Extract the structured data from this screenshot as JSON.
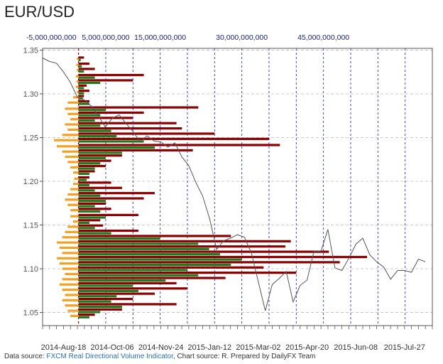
{
  "chart_title": "EUR/USD",
  "footer": {
    "prefix": "Data source: ",
    "link": "FXCM Real Directional Volume Indicator",
    "suffix": ", Chart source: R. Prepared by DailyFX Team"
  },
  "colors": {
    "price_line": "#555555",
    "buy_volume": "#1f7a1f",
    "sell_volume": "#8b0000",
    "net_volume": "#f5a020",
    "grid": "#bbbbbb",
    "volume_gridline": "#3333aa",
    "zero_line": "#8b0000",
    "top_axis_text": "#1a237e"
  },
  "chart_data": {
    "type": "line",
    "title": "EUR/USD",
    "y_axis": {
      "ticks": [
        "1.05",
        "1.10",
        "1.15",
        "1.20",
        "1.25",
        "1.30",
        "1.35"
      ],
      "min": 1.035,
      "max": 1.352
    },
    "x_axis": {
      "ticks": [
        "2014-Aug-18",
        "2014-Oct-06",
        "2014-Nov-24",
        "2015-Jan-12",
        "2015-Mar-02",
        "2015-Apr-20",
        "2015-Jun-08",
        "2015-Jul-27"
      ],
      "start": "2014-Jul-28",
      "end": "2015-Aug-24"
    },
    "volume_axis": {
      "ticks": [
        "-5,000,000,000",
        "5,000,000,000",
        "15,000,000,000",
        "30,000,000,000",
        "45,000,000,000"
      ],
      "min": -6600000000,
      "max": 65000000000,
      "gridlines": [
        0,
        5000000000,
        10000000000,
        15000000000,
        20000000000,
        25000000000,
        30000000000,
        35000000000,
        40000000000,
        45000000000,
        50000000000,
        55000000000,
        60000000000
      ]
    },
    "price_series": [
      [
        "2014-Jul-28",
        1.341
      ],
      [
        "2014-Aug-04",
        1.337
      ],
      [
        "2014-Aug-11",
        1.335
      ],
      [
        "2014-Aug-18",
        1.325
      ],
      [
        "2014-Aug-25",
        1.313
      ],
      [
        "2014-Sep-01",
        1.296
      ],
      [
        "2014-Sep-08",
        1.293
      ],
      [
        "2014-Sep-15",
        1.286
      ],
      [
        "2014-Sep-22",
        1.275
      ],
      [
        "2014-Sep-29",
        1.262
      ],
      [
        "2014-Oct-06",
        1.272
      ],
      [
        "2014-Oct-13",
        1.276
      ],
      [
        "2014-Oct-20",
        1.266
      ],
      [
        "2014-Oct-27",
        1.257
      ],
      [
        "2014-Nov-03",
        1.245
      ],
      [
        "2014-Nov-10",
        1.252
      ],
      [
        "2014-Nov-17",
        1.246
      ],
      [
        "2014-Nov-24",
        1.245
      ],
      [
        "2014-Dec-01",
        1.239
      ],
      [
        "2014-Dec-08",
        1.244
      ],
      [
        "2014-Dec-15",
        1.228
      ],
      [
        "2014-Dec-22",
        1.218
      ],
      [
        "2014-Dec-29",
        1.199
      ],
      [
        "2015-Jan-05",
        1.183
      ],
      [
        "2015-Jan-12",
        1.157
      ],
      [
        "2015-Jan-19",
        1.122
      ],
      [
        "2015-Jan-26",
        1.132
      ],
      [
        "2015-Feb-02",
        1.135
      ],
      [
        "2015-Feb-09",
        1.139
      ],
      [
        "2015-Feb-16",
        1.136
      ],
      [
        "2015-Feb-23",
        1.118
      ],
      [
        "2015-Mar-02",
        1.085
      ],
      [
        "2015-Mar-09",
        1.052
      ],
      [
        "2015-Mar-16",
        1.082
      ],
      [
        "2015-Mar-23",
        1.089
      ],
      [
        "2015-Mar-30",
        1.097
      ],
      [
        "2015-Apr-06",
        1.062
      ],
      [
        "2015-Apr-13",
        1.081
      ],
      [
        "2015-Apr-20",
        1.087
      ],
      [
        "2015-Apr-27",
        1.12
      ],
      [
        "2015-May-04",
        1.12
      ],
      [
        "2015-May-11",
        1.145
      ],
      [
        "2015-May-18",
        1.101
      ],
      [
        "2015-May-25",
        1.098
      ],
      [
        "2015-Jun-01",
        1.112
      ],
      [
        "2015-Jun-08",
        1.128
      ],
      [
        "2015-Jun-15",
        1.135
      ],
      [
        "2015-Jun-22",
        1.116
      ],
      [
        "2015-Jun-29",
        1.108
      ],
      [
        "2015-Jul-06",
        1.102
      ],
      [
        "2015-Jul-13",
        1.088
      ],
      [
        "2015-Jul-20",
        1.098
      ],
      [
        "2015-Jul-27",
        1.098
      ],
      [
        "2015-Aug-03",
        1.096
      ],
      [
        "2015-Aug-10",
        1.111
      ],
      [
        "2015-Aug-17",
        1.108
      ]
    ],
    "volume_profile": [
      [
        1.34,
        0.3,
        1.0,
        0.4
      ],
      [
        1.333,
        0.4,
        2.0,
        0.6
      ],
      [
        1.327,
        0.3,
        3.0,
        1.0
      ],
      [
        1.32,
        0.5,
        12.0,
        3.0
      ],
      [
        1.314,
        0.4,
        10.0,
        4.0
      ],
      [
        1.308,
        0.5,
        1.5,
        1.0
      ],
      [
        1.302,
        0.3,
        2.0,
        1.0
      ],
      [
        1.296,
        1.0,
        1.0,
        0.8
      ],
      [
        1.29,
        2.0,
        2.0,
        2.0
      ],
      [
        1.283,
        2.5,
        22.0,
        5.0
      ],
      [
        1.277,
        2.0,
        12.0,
        4.0
      ],
      [
        1.271,
        1.5,
        10.0,
        3.0
      ],
      [
        1.265,
        2.5,
        18.0,
        4.0
      ],
      [
        1.259,
        2.0,
        19.0,
        6.0
      ],
      [
        1.253,
        3.0,
        25.0,
        7.0
      ],
      [
        1.247,
        4.5,
        35.0,
        12.0
      ],
      [
        1.24,
        4.0,
        37.0,
        14.0
      ],
      [
        1.234,
        3.0,
        21.0,
        8.0
      ],
      [
        1.228,
        2.5,
        8.0,
        5.0
      ],
      [
        1.222,
        2.0,
        6.0,
        4.0
      ],
      [
        1.216,
        1.5,
        5.0,
        3.0
      ],
      [
        1.21,
        1.0,
        3.0,
        2.0
      ],
      [
        1.203,
        0.8,
        2.0,
        1.5
      ],
      [
        1.197,
        1.0,
        6.0,
        2.0
      ],
      [
        1.191,
        1.5,
        8.0,
        3.0
      ],
      [
        1.185,
        2.0,
        14.0,
        4.0
      ],
      [
        1.179,
        2.5,
        12.0,
        5.0
      ],
      [
        1.173,
        2.0,
        5.0,
        3.0
      ],
      [
        1.167,
        1.5,
        6.0,
        4.0
      ],
      [
        1.16,
        1.5,
        11.0,
        5.0
      ],
      [
        1.154,
        1.0,
        4.0,
        2.0
      ],
      [
        1.148,
        2.0,
        4.5,
        3.0
      ],
      [
        1.142,
        2.5,
        11.0,
        6.0
      ],
      [
        1.136,
        3.0,
        28.0,
        15.0
      ],
      [
        1.13,
        4.0,
        39.0,
        22.0
      ],
      [
        1.124,
        3.5,
        38.0,
        24.0
      ],
      [
        1.118,
        3.0,
        46.0,
        26.0
      ],
      [
        1.112,
        4.0,
        53.0,
        30.0
      ],
      [
        1.106,
        3.5,
        48.0,
        28.0
      ],
      [
        1.1,
        3.0,
        34.0,
        20.0
      ],
      [
        1.094,
        2.5,
        40.0,
        22.0
      ],
      [
        1.088,
        3.0,
        27.0,
        16.0
      ],
      [
        1.082,
        3.5,
        18.0,
        10.0
      ],
      [
        1.076,
        3.0,
        20.0,
        11.0
      ],
      [
        1.07,
        2.5,
        14.0,
        7.0
      ],
      [
        1.064,
        3.0,
        10.0,
        6.0
      ],
      [
        1.058,
        2.5,
        18.0,
        8.0
      ],
      [
        1.052,
        2.0,
        8.0,
        4.0
      ],
      [
        1.046,
        1.5,
        3.0,
        2.0
      ]
    ],
    "volume_profile_columns": [
      "price",
      "net",
      "sell",
      "buy"
    ],
    "volume_profile_unit": 1000000000,
    "legend": ""
  }
}
